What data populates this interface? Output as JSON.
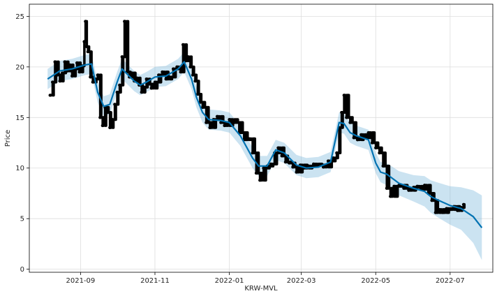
{
  "chart_data": {
    "type": "scatter",
    "xlabel": "KRW-MVL",
    "ylabel": "Price",
    "xlim": [
      "2021-07-21",
      "2022-08-05"
    ],
    "ylim": [
      -0.3,
      26.2
    ],
    "grid": true,
    "xticks": [
      "2021-09",
      "2021-11",
      "2022-01",
      "2022-03",
      "2022-05",
      "2022-07"
    ],
    "yticks": [
      0,
      5,
      10,
      15,
      20,
      25
    ],
    "colors": {
      "points": "#000000",
      "forecast": "#0072B2",
      "band": "#6baed6"
    },
    "forecast": {
      "x": [
        "2021-08-05",
        "2021-08-15",
        "2021-08-25",
        "2021-09-05",
        "2021-09-10",
        "2021-09-15",
        "2021-09-20",
        "2021-09-25",
        "2021-10-01",
        "2021-10-05",
        "2021-10-10",
        "2021-10-15",
        "2021-10-20",
        "2021-10-25",
        "2021-11-01",
        "2021-11-10",
        "2021-11-20",
        "2021-11-25",
        "2021-12-01",
        "2021-12-05",
        "2021-12-10",
        "2021-12-15",
        "2021-12-25",
        "2022-01-01",
        "2022-01-10",
        "2022-01-20",
        "2022-01-25",
        "2022-02-01",
        "2022-02-08",
        "2022-02-15",
        "2022-02-25",
        "2022-03-05",
        "2022-03-15",
        "2022-03-25",
        "2022-04-01",
        "2022-04-05",
        "2022-04-10",
        "2022-04-15",
        "2022-04-25",
        "2022-05-01",
        "2022-05-05",
        "2022-05-10",
        "2022-05-20",
        "2022-06-01",
        "2022-06-10",
        "2022-06-15",
        "2022-06-20",
        "2022-07-01",
        "2022-07-10",
        "2022-07-20",
        "2022-07-27"
      ],
      "yhat": [
        18.8,
        19.6,
        19.8,
        20.2,
        20.3,
        17.5,
        16.1,
        16.3,
        18.5,
        19.8,
        19.2,
        18.6,
        18.2,
        18.5,
        19.0,
        19.1,
        19.8,
        20.5,
        18.8,
        17.0,
        15.5,
        14.8,
        14.7,
        14.5,
        13.2,
        11.0,
        10.2,
        10.2,
        11.8,
        11.5,
        10.3,
        10.0,
        10.1,
        10.6,
        14.5,
        14.4,
        13.5,
        13.2,
        12.8,
        10.5,
        9.6,
        9.4,
        8.5,
        8.0,
        7.7,
        7.2,
        6.9,
        6.3,
        6.0,
        5.2,
        4.1
      ],
      "lower": [
        17.8,
        18.6,
        18.8,
        19.2,
        19.3,
        16.5,
        15.1,
        15.3,
        17.5,
        18.8,
        18.2,
        17.6,
        17.2,
        17.5,
        18.0,
        18.1,
        18.8,
        19.5,
        17.8,
        16.0,
        14.5,
        13.8,
        13.7,
        13.5,
        12.2,
        10.0,
        9.2,
        9.2,
        10.8,
        10.5,
        9.3,
        9.0,
        9.1,
        9.6,
        13.5,
        13.4,
        12.5,
        12.2,
        11.8,
        9.5,
        8.6,
        8.3,
        7.3,
        6.7,
        6.2,
        5.6,
        5.2,
        4.4,
        3.9,
        2.6,
        0.9
      ],
      "upper": [
        19.8,
        20.6,
        20.8,
        21.2,
        21.3,
        18.5,
        17.1,
        17.3,
        19.5,
        20.8,
        20.2,
        19.6,
        19.2,
        19.5,
        20.0,
        20.1,
        20.8,
        21.5,
        19.8,
        18.0,
        16.5,
        15.8,
        15.7,
        15.5,
        14.2,
        12.0,
        11.2,
        11.2,
        12.8,
        12.5,
        11.3,
        11.0,
        11.1,
        11.6,
        15.5,
        15.4,
        14.5,
        14.2,
        13.8,
        11.5,
        10.6,
        10.5,
        9.7,
        9.3,
        9.2,
        8.8,
        8.6,
        8.2,
        8.1,
        7.8,
        7.3
      ]
    },
    "observed": {
      "x": [
        "2021-08-07",
        "2021-08-09",
        "2021-08-11",
        "2021-08-13",
        "2021-08-15",
        "2021-08-17",
        "2021-08-19",
        "2021-08-21",
        "2021-08-23",
        "2021-08-25",
        "2021-08-27",
        "2021-08-29",
        "2021-08-31",
        "2021-09-02",
        "2021-09-04",
        "2021-09-05",
        "2021-09-06",
        "2021-09-07",
        "2021-09-09",
        "2021-09-11",
        "2021-09-13",
        "2021-09-15",
        "2021-09-17",
        "2021-09-19",
        "2021-09-21",
        "2021-09-23",
        "2021-09-25",
        "2021-09-27",
        "2021-09-29",
        "2021-10-01",
        "2021-10-03",
        "2021-10-05",
        "2021-10-07",
        "2021-10-09",
        "2021-10-11",
        "2021-10-13",
        "2021-10-15",
        "2021-10-17",
        "2021-10-19",
        "2021-10-21",
        "2021-10-23",
        "2021-10-25",
        "2021-10-27",
        "2021-10-29",
        "2021-11-01",
        "2021-11-04",
        "2021-11-07",
        "2021-11-10",
        "2021-11-13",
        "2021-11-16",
        "2021-11-19",
        "2021-11-22",
        "2021-11-24",
        "2021-11-26",
        "2021-11-28",
        "2021-11-30",
        "2021-12-02",
        "2021-12-04",
        "2021-12-06",
        "2021-12-08",
        "2021-12-10",
        "2021-12-13",
        "2021-12-16",
        "2021-12-19",
        "2021-12-22",
        "2021-12-25",
        "2021-12-28",
        "2022-01-01",
        "2022-01-05",
        "2022-01-09",
        "2022-01-13",
        "2022-01-17",
        "2022-01-20",
        "2022-01-23",
        "2022-01-26",
        "2022-01-29",
        "2022-02-01",
        "2022-02-04",
        "2022-02-07",
        "2022-02-10",
        "2022-02-13",
        "2022-02-16",
        "2022-02-19",
        "2022-02-22",
        "2022-02-25",
        "2022-02-28",
        "2022-03-03",
        "2022-03-07",
        "2022-03-11",
        "2022-03-15",
        "2022-03-19",
        "2022-03-23",
        "2022-03-27",
        "2022-03-30",
        "2022-04-01",
        "2022-04-03",
        "2022-04-05",
        "2022-04-07",
        "2022-04-10",
        "2022-04-13",
        "2022-04-16",
        "2022-04-19",
        "2022-04-22",
        "2022-04-25",
        "2022-04-28",
        "2022-05-01",
        "2022-05-04",
        "2022-05-07",
        "2022-05-10",
        "2022-05-13",
        "2022-05-16",
        "2022-05-20",
        "2022-05-24",
        "2022-05-28",
        "2022-06-01",
        "2022-06-04",
        "2022-06-07",
        "2022-06-10",
        "2022-06-13",
        "2022-06-16",
        "2022-06-19",
        "2022-06-22",
        "2022-06-25",
        "2022-06-28",
        "2022-07-01",
        "2022-07-04",
        "2022-07-07",
        "2022-07-10",
        "2022-07-12"
      ],
      "y": [
        17.2,
        18.5,
        20.5,
        19.2,
        18.6,
        19.4,
        20.5,
        19.6,
        20.2,
        19.1,
        19.8,
        20.4,
        19.5,
        20.1,
        22.5,
        24.5,
        22.0,
        21.5,
        19.0,
        18.5,
        18.8,
        19.2,
        15.0,
        14.2,
        16.0,
        15.5,
        14.0,
        14.8,
        16.3,
        17.5,
        18.2,
        21.0,
        24.5,
        19.5,
        19.0,
        19.4,
        18.6,
        18.9,
        18.2,
        17.5,
        18.0,
        18.8,
        18.3,
        17.9,
        18.5,
        19.2,
        19.5,
        18.8,
        19.0,
        19.8,
        20.0,
        19.5,
        22.2,
        20.6,
        21.0,
        20.0,
        19.2,
        18.6,
        17.3,
        16.5,
        16.0,
        14.5,
        14.0,
        14.8,
        15.1,
        14.5,
        14.2,
        14.8,
        14.5,
        13.5,
        12.8,
        12.9,
        11.5,
        9.5,
        8.8,
        10.0,
        10.2,
        10.4,
        11.5,
        12.0,
        11.2,
        10.6,
        10.5,
        10.1,
        9.6,
        10.3,
        10.0,
        10.2,
        10.4,
        10.3,
        10.1,
        10.7,
        11.0,
        11.5,
        14.0,
        15.5,
        17.2,
        15.0,
        14.5,
        13.0,
        12.8,
        13.3,
        13.0,
        13.5,
        12.5,
        12.0,
        11.5,
        10.2,
        8.0,
        7.2,
        8.2,
        8.3,
        8.0,
        7.8,
        8.1,
        8.2,
        7.9,
        8.3,
        7.5,
        6.8,
        5.6,
        5.9,
        5.6,
        6.0,
        5.9,
        6.2,
        5.8,
        6.1,
        6.4
      ]
    }
  }
}
